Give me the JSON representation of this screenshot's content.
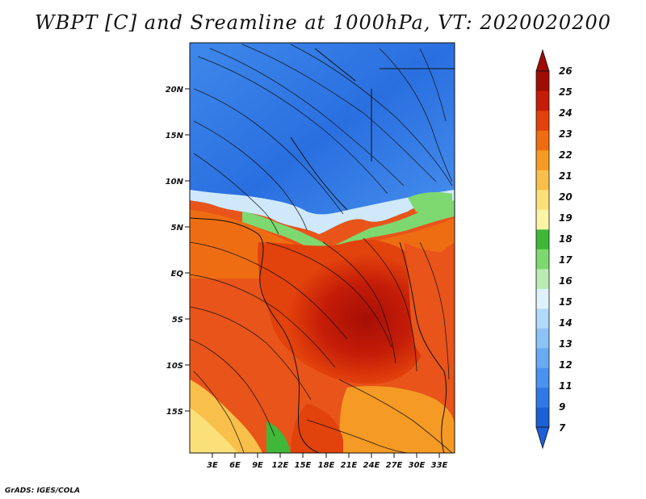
{
  "title": "WBPT [C] and Sreamline at 1000hPa, VT: 2020020200",
  "credit": "GrADS: IGES/COLA",
  "map": {
    "lat_labels": [
      "20N",
      "15N",
      "10N",
      "5N",
      "EQ",
      "5S",
      "10S",
      "15S"
    ],
    "lon_labels": [
      "3E",
      "6E",
      "9E",
      "12E",
      "15E",
      "18E",
      "21E",
      "24E",
      "27E",
      "30E",
      "33E"
    ],
    "lat_range": [
      -20,
      25
    ],
    "lon_range": [
      0,
      35
    ]
  },
  "colorbar": {
    "levels": [
      "7",
      "9",
      "11",
      "12",
      "13",
      "14",
      "15",
      "16",
      "17",
      "18",
      "19",
      "20",
      "21",
      "22",
      "23",
      "24",
      "25",
      "26"
    ],
    "colors": [
      "#1c5fd6",
      "#2f78e6",
      "#4a92ee",
      "#6aaaf2",
      "#8cc3f6",
      "#b4dafa",
      "#dff2fb",
      "#b9ebb2",
      "#7ed870",
      "#3fb83a",
      "#fbf4a7",
      "#fbe07a",
      "#f8c04a",
      "#f59a24",
      "#ef6d12",
      "#e2420c",
      "#c51d08",
      "#9e0c04"
    ]
  }
}
